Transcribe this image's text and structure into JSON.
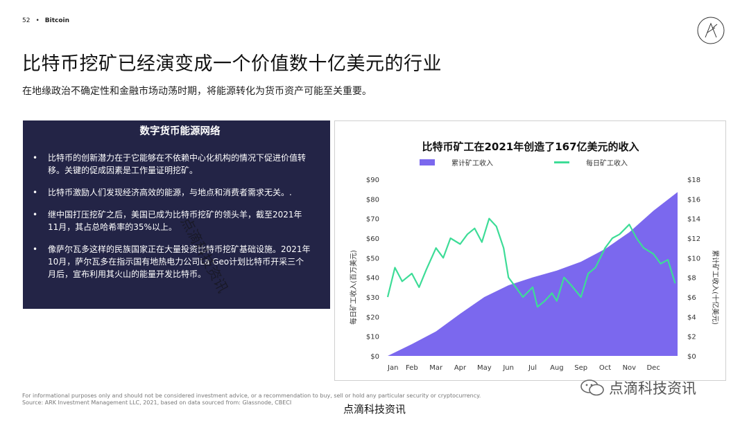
{
  "header": {
    "page_number": "52",
    "separator": "•",
    "section": "Bitcoin"
  },
  "title": "比特币挖矿已经演变成一个价值数十亿美元的行业",
  "subtitle": "在地缘政治不确定性和金融市场动荡时期，将能源转化为货币资产可能至关重要。",
  "panel": {
    "title": "数字货币能源网络",
    "bullets": [
      "比特币的创新潜力在于它能够在不依赖中心化机构的情况下促进价值转移。关键的促成因素是工作量证明挖矿。",
      "比特币激励人们发现经济高效的能源，与地点和消费者需求无关。.",
      "继中国打压挖矿之后，美国已成为比特币挖矿的领头羊，截至2021年11月，其占总哈希率的35%以上。",
      "像萨尔瓦多这样的民族国家正在大量投资比特币挖矿基础设施。2021年10月，萨尔瓦多在指示国有地热电力公司La Geo计划比特币开采三个月后，宣布利用其火山的能量开发比特币。"
    ]
  },
  "chart_data": {
    "type": "area",
    "title": "比特币矿工在2021年创造了167亿美元的收入",
    "x_ticks": [
      "Jan",
      "Feb",
      "Mar",
      "Apr",
      "May",
      "Jun",
      "Jul",
      "Aug",
      "Sep",
      "Oct",
      "Nov",
      "Dec"
    ],
    "ylabel_left": "每日矿工收入(百万美元)",
    "ylabel_right": "累计矿工收入(十亿美元)",
    "yticks_left": [
      "$0",
      "$10",
      "$20",
      "$30",
      "$40",
      "$50",
      "$60",
      "$70",
      "$80",
      "$90"
    ],
    "yticks_right": [
      "$0",
      "$2",
      "$4",
      "$6",
      "$8",
      "$10",
      "$12",
      "$14",
      "$16",
      "$18"
    ],
    "ylim_left": [
      0,
      90
    ],
    "ylim_right": [
      0,
      18
    ],
    "legend_position": "top",
    "grid": false,
    "series": [
      {
        "name": "累计矿工收入",
        "axis": "right",
        "color": "#7b68ee",
        "x": [
          0,
          1,
          2,
          3,
          4,
          5,
          6,
          7,
          8,
          9,
          10,
          11,
          12
        ],
        "values": [
          0,
          1.2,
          2.5,
          4.3,
          6.0,
          7.2,
          8.0,
          8.7,
          9.6,
          10.9,
          12.6,
          14.8,
          16.7
        ]
      },
      {
        "name": "每日矿工收入",
        "axis": "left",
        "color": "#3ddc97",
        "x": [
          0,
          0.3,
          0.6,
          1.0,
          1.3,
          1.6,
          2.0,
          2.3,
          2.6,
          3.0,
          3.3,
          3.6,
          3.9,
          4.2,
          4.5,
          4.8,
          5.0,
          5.3,
          5.6,
          6.0,
          6.2,
          6.5,
          6.8,
          7.0,
          7.3,
          7.6,
          8.0,
          8.3,
          8.6,
          9.0,
          9.3,
          9.6,
          10.0,
          10.3,
          10.6,
          11.0,
          11.3,
          11.6,
          11.9
        ],
        "values": [
          30,
          45,
          38,
          42,
          35,
          44,
          55,
          50,
          60,
          57,
          62,
          65,
          58,
          70,
          66,
          55,
          40,
          35,
          30,
          35,
          25,
          28,
          32,
          28,
          40,
          36,
          30,
          42,
          45,
          55,
          60,
          62,
          67,
          60,
          55,
          52,
          47,
          49,
          37
        ]
      }
    ]
  },
  "footnote": {
    "line1": "For informational purposes only and should not be considered investment advice, or a recommendation to buy, sell or hold any particular security or cryptocurrency.",
    "line2": "Source: ARK Investment Management LLC, 2021, based on data sourced from: Glassnode, CBECI"
  },
  "watermark": "点滴科技资讯",
  "bottom_brand": "点滴科技资讯",
  "diagonal_watermark": "点滴科技资讯",
  "colors": {
    "panel_bg": "#232446",
    "cumulative": "#7b68ee",
    "daily": "#3ddc97"
  }
}
